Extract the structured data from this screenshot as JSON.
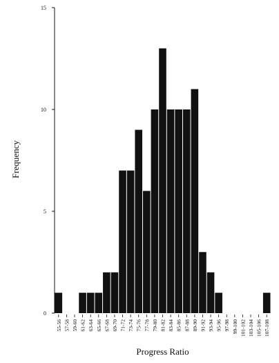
{
  "chart_data": {
    "type": "bar",
    "title": "",
    "xlabel": "Progress Ratio",
    "ylabel": "Frequency",
    "ylim": [
      0,
      15
    ],
    "yticks": [
      0,
      5,
      10,
      15
    ],
    "grid": false,
    "legend": "none",
    "bar_color": "#111111",
    "categories": [
      "55-56",
      "57-58",
      "59-60",
      "61-62",
      "63-64",
      "65-66",
      "67-68",
      "69-70",
      "71-72",
      "73-74",
      "75-76",
      "77-78",
      "79-80",
      "81-82",
      "83-84",
      "85-86",
      "87-88",
      "89-90",
      "91-92",
      "93-94",
      "95-96",
      "97-98",
      "99-100",
      "101-102",
      "103-104",
      "105-106",
      "107-108"
    ],
    "values": [
      1,
      0,
      0,
      1,
      1,
      1,
      2,
      2,
      7,
      7,
      9,
      6,
      10,
      13,
      10,
      10,
      10,
      11,
      3,
      2,
      1,
      0,
      0,
      0,
      0,
      0,
      1
    ]
  }
}
